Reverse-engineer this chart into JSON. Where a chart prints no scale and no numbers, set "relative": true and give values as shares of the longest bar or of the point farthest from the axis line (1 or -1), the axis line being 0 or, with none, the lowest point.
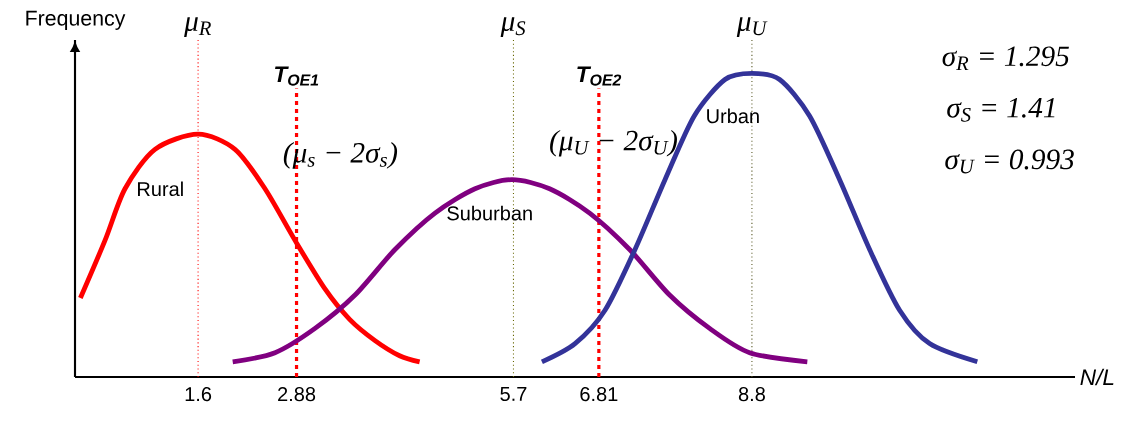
{
  "chart_data": {
    "type": "line",
    "relative": true,
    "xlabel": "N/L",
    "ylabel": "Frequency",
    "xlim": [
      0,
      13
    ],
    "xticks": [
      1.6,
      2.88,
      5.7,
      6.81,
      8.8
    ],
    "tick_labels": "x",
    "line_style": "solid",
    "series": [
      {
        "name": "Rural",
        "color": "#ff0000",
        "x": [
          0.07,
          0.39,
          0.65,
          1.04,
          1.6,
          2.08,
          2.47,
          2.86,
          3.25,
          3.57,
          3.9,
          4.22,
          4.48
        ],
        "values": [
          0.26,
          0.45,
          0.62,
          0.75,
          0.8,
          0.75,
          0.62,
          0.45,
          0.29,
          0.19,
          0.12,
          0.07,
          0.05
        ]
      },
      {
        "name": "Suburban",
        "color": "#800080",
        "x": [
          2.05,
          2.6,
          3.12,
          3.64,
          4.16,
          4.68,
          5.2,
          5.68,
          6.17,
          6.69,
          7.21,
          7.73,
          8.25,
          8.77,
          9.52
        ],
        "values": [
          0.05,
          0.08,
          0.16,
          0.27,
          0.42,
          0.54,
          0.62,
          0.65,
          0.62,
          0.54,
          0.42,
          0.27,
          0.16,
          0.08,
          0.05
        ]
      },
      {
        "name": "Urban",
        "color": "#333399",
        "x": [
          6.07,
          6.5,
          6.89,
          7.28,
          7.67,
          8.05,
          8.45,
          8.8,
          9.16,
          9.55,
          9.94,
          10.33,
          10.72,
          11.11,
          11.73
        ],
        "values": [
          0.05,
          0.11,
          0.22,
          0.42,
          0.65,
          0.86,
          0.98,
          1.0,
          0.98,
          0.86,
          0.65,
          0.42,
          0.22,
          0.11,
          0.05
        ]
      }
    ],
    "ref_lines": [
      {
        "axis": "x",
        "value": 1.6,
        "label": "μ$_{R}$",
        "color": "#ff0000",
        "line_style": "dotted"
      },
      {
        "axis": "x",
        "value": 5.7,
        "label": "μ$_{S}$",
        "color": "#666600",
        "line_style": "dotted"
      },
      {
        "axis": "x",
        "value": 8.8,
        "label": "μ$_{U}$",
        "color": "#555522",
        "line_style": "dotted"
      },
      {
        "axis": "x",
        "value": 2.88,
        "label": "T$_{OE1}$",
        "color": "#ff0000",
        "line_style": "dashed"
      },
      {
        "axis": "x",
        "value": 6.81,
        "label": "T$_{OE2}$",
        "color": "#ff0000",
        "line_style": "dashed"
      }
    ],
    "annotations": [
      "(μ$_{s}$ − 2σ$_{s}$)",
      "(μ$_{U}$ − 2σ$_{U}$)",
      "σ$_{R}$ = 1.295",
      "σ$_{S}$ = 1.41",
      "σ$_{U}$ = 0.993"
    ]
  }
}
